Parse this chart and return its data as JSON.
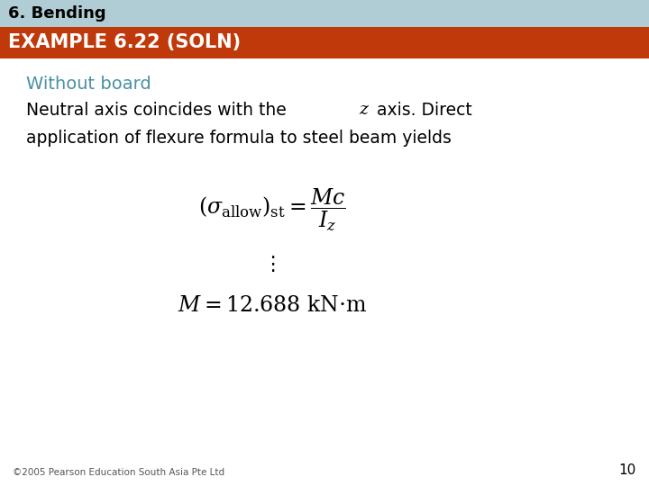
{
  "title_bar_text": "6. Bending",
  "title_bar_bg": "#b0cdd5",
  "title_bar_fg": "#000000",
  "subtitle_bar_text": "EXAMPLE 6.22 (SOLN)",
  "subtitle_bar_bg": "#c0390b",
  "subtitle_bar_fg": "#ffffff",
  "section_heading": "Without board",
  "section_heading_color": "#4a90a4",
  "body_text_line1": "Neutral axis coincides with the ",
  "body_text_italic": "z",
  "body_text_line1b": " axis. Direct",
  "body_text_line2": "application of flexure formula to steel beam yields",
  "dots": "⋮",
  "footer_text": "©2005 Pearson Education South Asia Pte Ltd",
  "page_number": "10",
  "bg_color": "#ffffff",
  "body_color": "#000000",
  "footer_color": "#555555",
  "title_fontsize": 13,
  "subtitle_fontsize": 15,
  "heading_fontsize": 14,
  "body_fontsize": 13.5,
  "formula_fontsize": 17,
  "result_fontsize": 17,
  "dots_fontsize": 16,
  "footer_fontsize": 7.5,
  "page_fontsize": 11,
  "title_bar_height": 0.055,
  "sub_bar_height": 0.065
}
